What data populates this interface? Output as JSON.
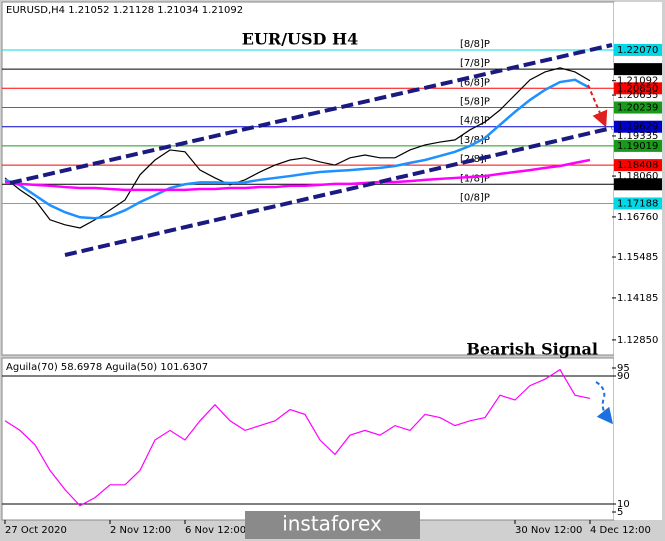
{
  "header": "EURUSD,H4  1.21052 1.21128 1.21034 1.21092",
  "watermark": "instaforex",
  "chart_data": [
    {
      "type": "line",
      "title": "EUR/USD H4",
      "annotation": "Bearish Signal",
      "categories": [
        "27 Oct 2020",
        null,
        null,
        null,
        null,
        null,
        null,
        "2 Nov 12:00",
        null,
        null,
        null,
        null,
        "6 Nov 12:00",
        null,
        null,
        null,
        null,
        null,
        null,
        null,
        null,
        null,
        null,
        null,
        null,
        null,
        null,
        null,
        null,
        null,
        null,
        null,
        null,
        null,
        "30 Nov 12:00",
        null,
        null,
        null,
        null,
        "4 Dec 12:00"
      ],
      "series": [
        {
          "color": "#000000",
          "values": [
            1.18,
            1.1762,
            1.173,
            1.1667,
            1.1651,
            1.1641,
            1.1667,
            1.1698,
            1.173,
            1.181,
            1.1857,
            1.1889,
            1.1883,
            1.1825,
            1.18,
            1.1778,
            1.1794,
            1.1819,
            1.1841,
            1.1857,
            1.1864,
            1.1851,
            1.1841,
            1.1864,
            1.1873,
            1.1864,
            1.1864,
            1.1889,
            1.1905,
            1.1914,
            1.1921,
            1.1953,
            1.1978,
            1.2016,
            1.2064,
            1.2112,
            1.2137,
            1.215,
            1.2137,
            1.2109
          ]
        },
        {
          "color": "#1e90ff",
          "values": [
            1.1794,
            1.1777,
            1.1745,
            1.1713,
            1.1691,
            1.1675,
            1.1672,
            1.1678,
            1.1697,
            1.1723,
            1.1745,
            1.1768,
            1.178,
            1.1786,
            1.1786,
            1.1784,
            1.1786,
            1.1794,
            1.18,
            1.1806,
            1.1813,
            1.1819,
            1.1822,
            1.1825,
            1.1829,
            1.1832,
            1.1838,
            1.1848,
            1.1857,
            1.187,
            1.1883,
            1.1902,
            1.1927,
            1.1969,
            1.201,
            1.2048,
            1.208,
            1.2105,
            1.2112,
            1.2086
          ]
        },
        {
          "color": "#ff00ff",
          "values": [
            1.1787,
            1.1781,
            1.1778,
            1.1775,
            1.1771,
            1.1768,
            1.1768,
            1.1765,
            1.1762,
            1.1762,
            1.1762,
            1.1762,
            1.1762,
            1.1765,
            1.1765,
            1.1768,
            1.1768,
            1.1771,
            1.1771,
            1.1775,
            1.1775,
            1.1778,
            1.1781,
            1.1781,
            1.1784,
            1.1787,
            1.1787,
            1.179,
            1.1794,
            1.1797,
            1.18,
            1.1803,
            1.1806,
            1.1813,
            1.1819,
            1.1825,
            1.1832,
            1.1838,
            1.1848,
            1.1857
          ]
        }
      ],
      "levels": [
        {
          "name": "[8/8]P",
          "value": 1.2207,
          "label": "1.22070",
          "color": "#00d8e8"
        },
        {
          "name": "[7/8]P",
          "value": 1.2146,
          "label": "1.21460",
          "color": "#000000"
        },
        {
          "name": "[6/8]P",
          "value": 1.2085,
          "label": "1.20850",
          "color": "#ff0000"
        },
        {
          "name": "[5/8]P",
          "value": 1.20239,
          "label": "1.20239",
          "color": "#1a9a1a"
        },
        {
          "name": "[4/8]P",
          "value": 1.19629,
          "label": "1.19629",
          "color": "#0000cc"
        },
        {
          "name": "[3/8]P",
          "value": 1.19019,
          "label": "1.19019",
          "color": "#1a9a1a"
        },
        {
          "name": "[2/8]P",
          "value": 1.18408,
          "label": "1.18408",
          "color": "#ff0000"
        },
        {
          "name": "[1/8]P",
          "value": 1.17798,
          "label": "1.17798",
          "color": "#000000"
        },
        {
          "name": "[0/8]P",
          "value": 1.17188,
          "label": "1.17188",
          "color": "#00d8e8"
        }
      ],
      "ylim": [
        1.1237,
        1.2334
      ],
      "yticks": [
        1.21092,
        1.20635,
        1.19335,
        {
          "value": 1.1806,
          "label": "1.18060"
        },
        {
          "value": 1.1676,
          "label": "1.16760"
        },
        1.15485,
        1.14185,
        {
          "value": 1.1285,
          "label": "1.12850"
        }
      ]
    },
    {
      "type": "line",
      "title": "Aguila(70) 58.6978  Aguila(50) 101.6307",
      "series": [
        {
          "color": "#ff00ff",
          "values": [
            62,
            56,
            47,
            31,
            19,
            9,
            14,
            22,
            22,
            31,
            50,
            56,
            50,
            62,
            72,
            62,
            56,
            59,
            62,
            69,
            66,
            50,
            41,
            53,
            56,
            53,
            59,
            56,
            66,
            64,
            59,
            62,
            64,
            78,
            75,
            84,
            88,
            94,
            78,
            76
          ]
        }
      ],
      "ylim": [
        0,
        100
      ],
      "yticks": [
        95,
        90,
        10,
        5
      ]
    }
  ]
}
